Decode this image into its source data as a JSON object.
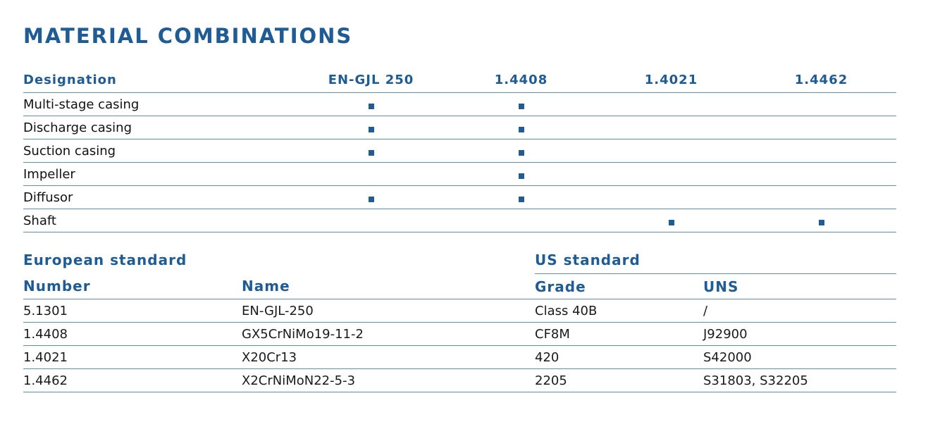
{
  "title": "MATERIAL COMBINATIONS",
  "materials_table": {
    "header_label": "Designation",
    "materials": [
      "EN-GJL 250",
      "1.4408",
      "1.4021",
      "1.4462"
    ],
    "rows": [
      {
        "part": "Multi-stage casing",
        "marks": [
          true,
          true,
          false,
          false
        ]
      },
      {
        "part": "Discharge casing",
        "marks": [
          true,
          true,
          false,
          false
        ]
      },
      {
        "part": "Suction casing",
        "marks": [
          true,
          true,
          false,
          false
        ]
      },
      {
        "part": "Impeller",
        "marks": [
          false,
          true,
          false,
          false
        ]
      },
      {
        "part": "Diffusor",
        "marks": [
          true,
          true,
          false,
          false
        ]
      },
      {
        "part": "Shaft",
        "marks": [
          false,
          false,
          true,
          true
        ]
      }
    ]
  },
  "standards_table": {
    "european_label": "European standard",
    "us_label": "US standard",
    "columns": [
      "Number",
      "Name",
      "Grade",
      "UNS"
    ],
    "rows": [
      [
        "5.1301",
        "EN-GJL-250",
        "Class 40B",
        "/"
      ],
      [
        "1.4408",
        "GX5CrNiMo19-11-2",
        "CF8M",
        "J92900"
      ],
      [
        "1.4021",
        "X20Cr13",
        "420",
        "S42000"
      ],
      [
        "1.4462",
        "X2CrNiMoN22-5-3",
        "2205",
        "S31803, S32205"
      ]
    ]
  },
  "colors": {
    "accent": "#1f5b94",
    "rule": "#5b8fc4"
  }
}
